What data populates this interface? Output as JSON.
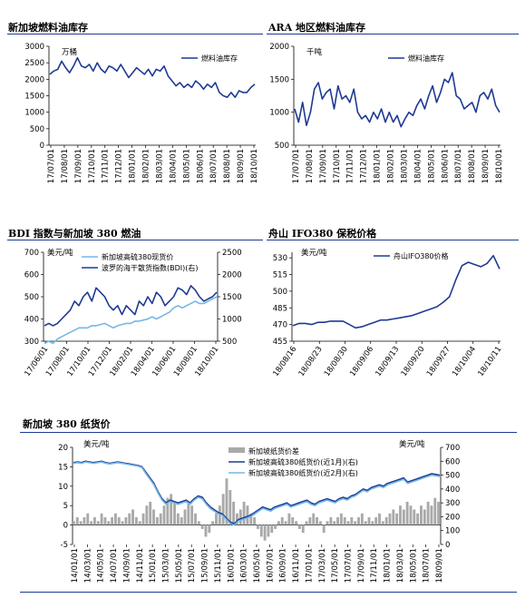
{
  "headings": {
    "p1": "新加坡燃料油库存",
    "p2": "ARA 地区燃料油库存",
    "p3": "BDI 指数与新加坡 380 燃油",
    "p4": "舟山 IFO380 保税价格",
    "p5": "新加坡 380 纸货价"
  },
  "colors": {
    "rule": "#1f3a93",
    "navy": "#1f3a93",
    "light_blue": "#74b8e6",
    "gray_bar": "#a9a9a9"
  },
  "chart_data": [
    {
      "id": "sg_fuel_stock",
      "type": "line",
      "title": "新加坡燃料油库存",
      "unit_label": "万桶",
      "ylim": [
        0,
        3000
      ],
      "yticks": [
        0,
        500,
        1000,
        1500,
        2000,
        2500,
        3000
      ],
      "xticks": [
        "17/07/01",
        "17/08/01",
        "17/09/01",
        "17/10/01",
        "17/11/01",
        "17/12/01",
        "18/01/01",
        "18/02/01",
        "18/03/01",
        "18/04/01",
        "18/05/01",
        "18/06/01",
        "18/07/01",
        "18/08/01",
        "18/09/01",
        "18/10/01"
      ],
      "legend": "top-right",
      "series": [
        {
          "name": "燃料油库存",
          "values": [
            2150,
            2250,
            2300,
            2550,
            2350,
            2200,
            2400,
            2650,
            2400,
            2350,
            2450,
            2250,
            2500,
            2300,
            2200,
            2400,
            2350,
            2250,
            2450,
            2250,
            2050,
            2200,
            2350,
            2250,
            2150,
            2300,
            2100,
            2300,
            2250,
            2400,
            2100,
            1950,
            1800,
            1900,
            1750,
            1850,
            1750,
            1950,
            1850,
            1700,
            1850,
            1750,
            1900,
            1600,
            1500,
            1450,
            1600,
            1450,
            1650,
            1600,
            1600,
            1750,
            1850
          ]
        }
      ]
    },
    {
      "id": "ara_fuel_stock",
      "type": "line",
      "title": "ARA 地区燃料油库存",
      "unit_label": "千吨",
      "ylim": [
        500,
        2000
      ],
      "yticks": [
        500,
        1000,
        1500,
        2000
      ],
      "xticks": [
        "17/07/01",
        "17/08/01",
        "17/09/01",
        "17/10/01",
        "17/11/01",
        "17/12/01",
        "18/01/01",
        "18/02/01",
        "18/03/01",
        "18/04/01",
        "18/05/01",
        "18/06/01",
        "18/07/01",
        "18/08/01",
        "18/09/01",
        "18/10/01"
      ],
      "legend": "top-right",
      "series": [
        {
          "name": "燃料油库存",
          "values": [
            1050,
            850,
            1150,
            800,
            1000,
            1350,
            1450,
            1200,
            1300,
            1350,
            1050,
            1400,
            1200,
            1250,
            1150,
            1350,
            1000,
            900,
            950,
            850,
            1000,
            900,
            1050,
            850,
            1000,
            850,
            950,
            780,
            900,
            1000,
            950,
            1100,
            1200,
            1050,
            1250,
            1400,
            1150,
            1300,
            1500,
            1450,
            1600,
            1250,
            1200,
            1050,
            1100,
            1150,
            1000,
            1250,
            1300,
            1200,
            1350,
            1100,
            1000
          ]
        }
      ]
    },
    {
      "id": "bdi_vs_sg380",
      "type": "line",
      "title": "BDI 指数与新加坡 380 燃油",
      "unit_label": "美元/吨",
      "ylim": [
        300,
        700
      ],
      "yticks": [
        300,
        400,
        500,
        600,
        700
      ],
      "y2lim": [
        500,
        2500
      ],
      "y2ticks": [
        500,
        1000,
        1500,
        2000,
        2500
      ],
      "xticks": [
        "17/06/01",
        "17/08/01",
        "17/10/01",
        "17/12/01",
        "18/02/01",
        "18/04/01",
        "18/06/01",
        "18/08/01",
        "18/10/01"
      ],
      "legend": "top-left",
      "series": [
        {
          "name": "新加坡高硫380现货价",
          "axis": "left",
          "values": [
            290,
            300,
            290,
            310,
            320,
            330,
            340,
            350,
            360,
            360,
            360,
            370,
            370,
            375,
            380,
            370,
            360,
            370,
            375,
            380,
            380,
            390,
            390,
            395,
            400,
            410,
            400,
            410,
            420,
            430,
            450,
            460,
            450,
            460,
            470,
            480,
            470,
            470,
            480,
            490,
            500
          ]
        },
        {
          "name": "波罗的海干散货指数(BDI)(右)",
          "axis": "right",
          "values": [
            850,
            900,
            850,
            900,
            1000,
            1100,
            1200,
            1400,
            1300,
            1500,
            1600,
            1400,
            1700,
            1600,
            1500,
            1300,
            1200,
            1300,
            1100,
            1300,
            1200,
            1100,
            1400,
            1300,
            1500,
            1350,
            1600,
            1500,
            1300,
            1400,
            1500,
            1700,
            1650,
            1550,
            1750,
            1650,
            1500,
            1400,
            1450,
            1500,
            1600
          ]
        }
      ]
    },
    {
      "id": "zhoushan_ifo380",
      "type": "line",
      "title": "舟山 IFO380 保税价格",
      "unit_label": "美元/吨",
      "ylim": [
        455,
        535
      ],
      "yticks": [
        455,
        470,
        485,
        500,
        515,
        530
      ],
      "xticks": [
        "18/08/16",
        "18/08/23",
        "18/08/30",
        "18/09/06",
        "18/09/13",
        "18/09/20",
        "18/09/27",
        "18/10/04",
        "18/10/11"
      ],
      "legend": "top-left",
      "series": [
        {
          "name": "舟山IFO380价格",
          "values": [
            469,
            471,
            471,
            470,
            472,
            472,
            473,
            473,
            473,
            470,
            467,
            468,
            470,
            472,
            474,
            474,
            475,
            476,
            477,
            478,
            480,
            482,
            484,
            486,
            490,
            495,
            510,
            523,
            526,
            524,
            522,
            525,
            532,
            520
          ]
        }
      ]
    },
    {
      "id": "sg380_paper",
      "type": "bar",
      "title": "新加坡 380 纸货价",
      "unit_label_left": "美元/吨",
      "unit_label_right": "美元/吨",
      "ylim": [
        -5,
        20
      ],
      "yticks": [
        -5,
        0,
        5,
        10,
        15,
        20
      ],
      "y2lim": [
        0,
        700
      ],
      "y2ticks": [
        0,
        100,
        200,
        300,
        400,
        500,
        600,
        700
      ],
      "xticks": [
        "14/01/01",
        "14/03/01",
        "14/05/01",
        "14/07/01",
        "14/09/01",
        "14/11/01",
        "15/01/01",
        "15/03/01",
        "15/05/01",
        "15/07/01",
        "15/09/01",
        "15/11/01",
        "16/01/01",
        "16/03/01",
        "16/05/01",
        "16/07/01",
        "16/09/01",
        "16/11/01",
        "17/01/01",
        "17/03/01",
        "17/05/01",
        "17/07/01",
        "17/09/01",
        "17/11/01",
        "18/01/01",
        "18/03/01",
        "18/05/01",
        "18/07/01",
        "18/09/01"
      ],
      "legend": "top-right",
      "series": [
        {
          "name": "新加坡纸货价差",
          "kind": "bar",
          "axis": "left",
          "values": [
            1,
            2,
            1,
            2,
            3,
            1,
            2,
            1,
            3,
            2,
            1,
            2,
            3,
            2,
            1,
            2,
            3,
            4,
            2,
            1,
            3,
            5,
            6,
            4,
            2,
            3,
            5,
            7,
            8,
            6,
            3,
            2,
            4,
            6,
            5,
            3,
            1,
            -1,
            -3,
            -2,
            1,
            3,
            5,
            8,
            12,
            9,
            6,
            3,
            4,
            6,
            5,
            3,
            2,
            -1,
            -3,
            -4,
            -3,
            -2,
            -1,
            1,
            2,
            1,
            3,
            2,
            1,
            -1,
            -2,
            1,
            2,
            3,
            2,
            1,
            -2,
            1,
            2,
            1,
            2,
            3,
            2,
            1,
            2,
            1,
            2,
            3,
            1,
            2,
            1,
            2,
            3,
            1,
            2,
            3,
            4,
            3,
            5,
            4,
            6,
            5,
            4,
            3,
            5,
            4,
            6,
            5,
            7,
            6
          ]
        },
        {
          "name": "新加坡高硫380纸货价(近1月)(右)",
          "kind": "line",
          "axis": "right",
          "values": [
            590,
            595,
            590,
            600,
            595,
            590,
            595,
            600,
            590,
            585,
            590,
            595,
            590,
            585,
            580,
            575,
            570,
            560,
            520,
            480,
            440,
            380,
            330,
            300,
            320,
            310,
            300,
            310,
            320,
            300,
            330,
            350,
            340,
            300,
            270,
            250,
            230,
            220,
            190,
            160,
            150,
            180,
            190,
            200,
            210,
            230,
            250,
            270,
            260,
            250,
            270,
            280,
            290,
            300,
            280,
            290,
            300,
            310,
            320,
            300,
            290,
            310,
            320,
            330,
            320,
            310,
            330,
            340,
            330,
            350,
            360,
            380,
            400,
            390,
            410,
            420,
            430,
            420,
            440,
            450,
            460,
            470,
            480,
            450,
            460,
            470,
            480,
            490,
            500,
            510,
            505,
            500
          ]
        },
        {
          "name": "新加坡高硫380纸货价(近2月)(右)",
          "kind": "line",
          "axis": "right",
          "values": [
            585,
            590,
            585,
            595,
            590,
            585,
            590,
            595,
            585,
            580,
            585,
            590,
            585,
            580,
            575,
            570,
            565,
            555,
            510,
            470,
            430,
            370,
            320,
            290,
            310,
            300,
            290,
            300,
            310,
            290,
            320,
            340,
            330,
            290,
            260,
            240,
            220,
            210,
            180,
            150,
            140,
            170,
            180,
            190,
            200,
            220,
            240,
            260,
            250,
            240,
            260,
            270,
            280,
            290,
            270,
            280,
            290,
            300,
            310,
            290,
            280,
            300,
            310,
            320,
            310,
            300,
            320,
            330,
            320,
            340,
            350,
            370,
            390,
            380,
            400,
            410,
            420,
            410,
            430,
            440,
            450,
            460,
            470,
            440,
            450,
            460,
            470,
            480,
            490,
            500,
            495,
            490
          ]
        }
      ]
    }
  ]
}
